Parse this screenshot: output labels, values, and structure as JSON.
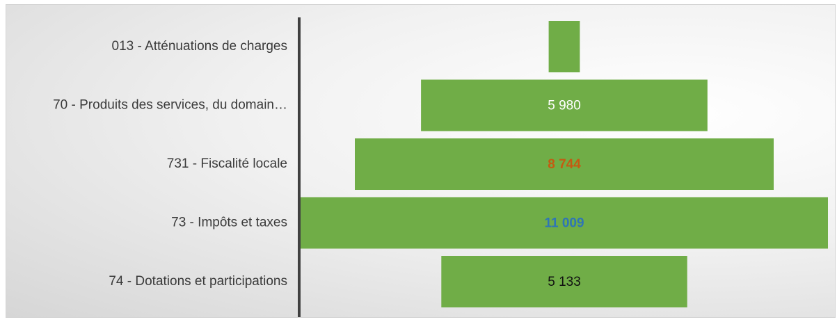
{
  "chart_data": {
    "type": "bar",
    "orientation": "horizontal-centered",
    "categories": [
      "013 - Atténuations de charges",
      "70 - Produits des services, du domain…",
      "731 - Fiscalité locale",
      "73 - Impôts et taxes",
      "74 - Dotations et participations"
    ],
    "values": [
      650,
      5980,
      8744,
      11009,
      5133
    ],
    "value_labels": [
      "",
      "5 980",
      "8 744",
      "11 009",
      "5 133"
    ],
    "label_colors": [
      "#ffffff",
      "#ffffff",
      "#c55a11",
      "#2e75b6",
      "#111111"
    ],
    "label_bold": [
      false,
      false,
      true,
      true,
      false
    ],
    "bar_color": "#70ad47",
    "axis_color": "#404040",
    "grid": false,
    "legend": "none",
    "xlim": [
      0,
      11009
    ]
  }
}
